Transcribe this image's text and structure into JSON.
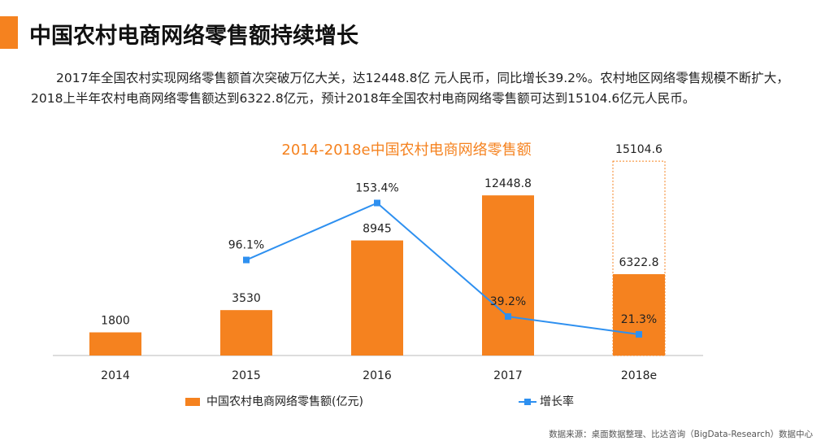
{
  "header": {
    "title": "中国农村电商网络零售额持续增长"
  },
  "text": {
    "paragraph": "2017年全国农村实现网络零售额首次突破万亿大关，达12448.8亿 元人民币，同比增长39.2%。农村地区网络零售规模不断扩大，2018上半年农村电商网络零售额达到6322.8亿元，预计2018年全国农村电商网络零售额可达到15104.6亿元人民币。"
  },
  "chart_data": {
    "type": "bar",
    "title": "2014-2018e中国农村电商网络零售额",
    "categories": [
      "2014",
      "2015",
      "2016",
      "2017",
      "2018e"
    ],
    "series": [
      {
        "name": "中国农村电商网络零售额(亿元)",
        "color": "#f5821f",
        "values": [
          1800,
          3530,
          8945,
          12448.8,
          6322.8
        ]
      },
      {
        "color": "#f5821f",
        "style": "dashed",
        "values": [
          null,
          null,
          null,
          null,
          15104.6
        ]
      },
      {
        "name": "增长率",
        "type": "line",
        "axis": "y2",
        "color": "#2e90f0",
        "values": [
          null,
          96.1,
          153.4,
          39.2,
          21.3
        ],
        "value_labels": [
          null,
          "96.1%",
          "153.4%",
          "39.2%",
          "21.3%"
        ]
      }
    ],
    "ylim": [
      0,
      16000
    ],
    "y2lim": [
      0,
      207
    ],
    "legend": "bottom",
    "source": "数据来源：桌面数据整理、比达咨询（BigData-Research）数据中心"
  }
}
